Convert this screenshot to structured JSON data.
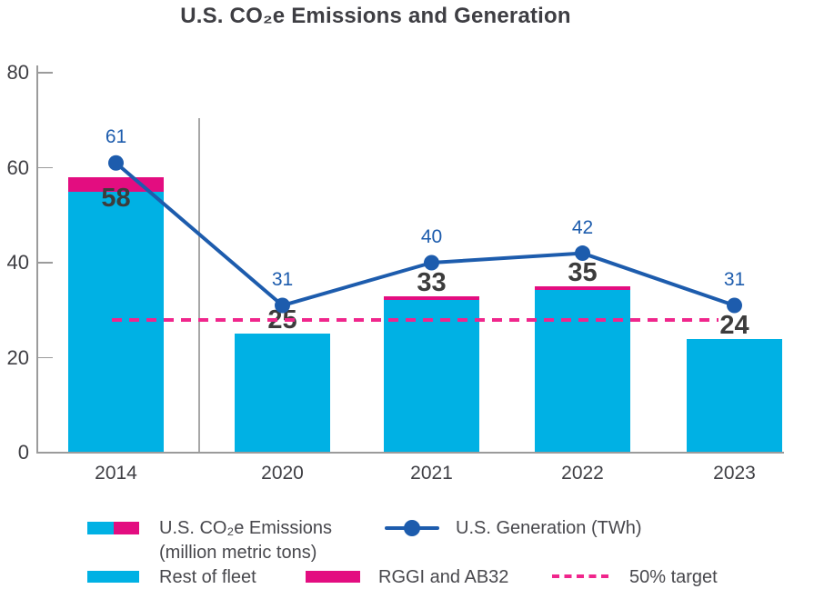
{
  "title": "U.S. CO₂e Emissions and Generation",
  "colors": {
    "cyan": "#00b1e4",
    "magenta": "#e30d80",
    "dash_pink": "#f0268c",
    "line_blue": "#1d5cad",
    "text_dark": "#3f3f44",
    "axis_gray": "#9b9b9b",
    "separator_gray": "#a7a7a7"
  },
  "chart_data": {
    "type": "bar",
    "subtype": "stacked bars with overlaid line and dashed target",
    "title": "U.S. CO₂e Emissions and Generation",
    "categories": [
      "2014",
      "2020",
      "2021",
      "2022",
      "2023"
    ],
    "series": [
      {
        "name": "Rest of fleet",
        "type": "bar",
        "color_key": "cyan",
        "values": [
          55,
          25,
          32.2,
          34.2,
          24
        ]
      },
      {
        "name": "RGGI and AB32",
        "type": "bar",
        "color_key": "magenta",
        "values": [
          3,
          0,
          0.8,
          0.8,
          0
        ]
      },
      {
        "name": "U.S. Generation (TWh)",
        "type": "line",
        "color_key": "line_blue",
        "values": [
          61,
          31,
          40,
          42,
          31
        ]
      }
    ],
    "bar_totals": [
      58,
      25,
      33,
      35,
      24
    ],
    "bar_total_labels": [
      "58",
      "25",
      "33",
      "35",
      "24"
    ],
    "line_labels": [
      "61",
      "31",
      "40",
      "42",
      "31"
    ],
    "target": {
      "label": "50% target",
      "value": 28
    },
    "y_ticks": [
      0,
      20,
      40,
      60,
      80
    ],
    "ylim": [
      0,
      80
    ],
    "xlabel": "",
    "ylabel": "",
    "grid": false,
    "legend_position": "bottom",
    "notes": "vertical gray separator between 2014 and 2020 bars; dashed 50% target line spans 2014 through 2023"
  },
  "legend": {
    "emissions_label_line1": "U.S. CO₂e Emissions",
    "emissions_label_line2": "(million metric tons)",
    "generation_label": "U.S. Generation (TWh)",
    "rest_label": "Rest of fleet",
    "rggi_label": "RGGI and AB32",
    "target_label": "50% target"
  }
}
